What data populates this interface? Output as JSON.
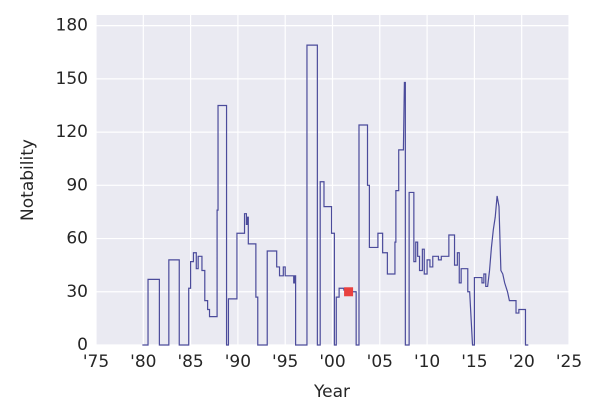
{
  "chart_data": {
    "type": "line",
    "xlabel": "Year",
    "ylabel": "Notability",
    "xlim": [
      1975,
      2025
    ],
    "xticks": [
      {
        "value": 1975,
        "label": "'75"
      },
      {
        "value": 1980,
        "label": "'80"
      },
      {
        "value": 1985,
        "label": "'85"
      },
      {
        "value": 1990,
        "label": "'90"
      },
      {
        "value": 1995,
        "label": "'95"
      },
      {
        "value": 2000,
        "label": "'00"
      },
      {
        "value": 2005,
        "label": "'05"
      },
      {
        "value": 2010,
        "label": "'10"
      },
      {
        "value": 2015,
        "label": "'15"
      },
      {
        "value": 2020,
        "label": "'20"
      },
      {
        "value": 2025,
        "label": "'25"
      }
    ],
    "ylim": [
      0,
      186
    ],
    "yticks": [
      0,
      30,
      60,
      90,
      120,
      150,
      180
    ],
    "grid": true,
    "series": [
      {
        "color": "#4b4b9b",
        "x": [
          1979.9,
          1980.5,
          1980.5,
          1981.7,
          1981.7,
          1982.7,
          1982.7,
          1983.8,
          1983.8,
          1984.8,
          1984.8,
          1985.0,
          1985.0,
          1985.3,
          1985.3,
          1985.6,
          1985.6,
          1985.8,
          1985.8,
          1986.2,
          1986.2,
          1986.5,
          1986.5,
          1986.8,
          1986.8,
          1987.0,
          1987.0,
          1987.8,
          1987.8,
          1987.9,
          1987.9,
          1988.8,
          1988.8,
          1989.0,
          1989.0,
          1989.9,
          1989.9,
          1990.7,
          1990.7,
          1990.9,
          1990.9,
          1991.0,
          1991.0,
          1991.1,
          1991.1,
          1991.9,
          1991.9,
          1992.1,
          1992.1,
          1993.1,
          1993.1,
          1994.1,
          1994.1,
          1994.4,
          1994.4,
          1994.8,
          1994.8,
          1995.0,
          1995.0,
          1995.9,
          1995.9,
          1996.0,
          1996.0,
          1996.1,
          1996.1,
          1997.3,
          1997.3,
          1998.4,
          1998.4,
          1998.7,
          1998.7,
          1999.1,
          1999.1,
          1999.9,
          1999.9,
          2000.2,
          2000.2,
          2000.4,
          2000.4,
          2000.7,
          2000.7,
          2001.2,
          2001.2,
          2001.4,
          2001.4,
          2002.5,
          2002.5,
          2002.8,
          2002.8,
          2003.7,
          2003.7,
          2003.9,
          2003.9,
          2004.8,
          2004.8,
          2005.3,
          2005.3,
          2005.8,
          2005.8,
          2006.6,
          2006.6,
          2006.7,
          2006.7,
          2007.0,
          2007.0,
          2007.5,
          2007.5,
          2007.6,
          2007.7,
          2007.7,
          2008.1,
          2008.1,
          2008.6,
          2008.6,
          2008.8,
          2008.8,
          2009.0,
          2009.0,
          2009.2,
          2009.2,
          2009.5,
          2009.5,
          2009.7,
          2009.7,
          2010.0,
          2010.0,
          2010.3,
          2010.3,
          2010.6,
          2010.6,
          2011.2,
          2011.2,
          2011.5,
          2011.5,
          2012.3,
          2012.3,
          2012.9,
          2012.9,
          2013.2,
          2013.2,
          2013.4,
          2013.4,
          2013.6,
          2013.6,
          2014.3,
          2014.3,
          2014.5,
          2014.8,
          2015.0,
          2015.0,
          2015.8,
          2015.8,
          2016.0,
          2016.0,
          2016.2,
          2016.2,
          2016.4,
          2016.6,
          2016.8,
          2017.0,
          2017.2,
          2017.4,
          2017.6,
          2017.8,
          2018.0,
          2018.2,
          2018.5,
          2018.7,
          2019.4,
          2019.4,
          2019.7,
          2019.7,
          2020.4,
          2020.4,
          2020.7
        ],
        "values": [
          0,
          0,
          37,
          37,
          0,
          0,
          48,
          48,
          0,
          0,
          32,
          32,
          47,
          47,
          52,
          52,
          43,
          43,
          50,
          50,
          42,
          42,
          25,
          25,
          20,
          20,
          16,
          16,
          76,
          76,
          135,
          135,
          0,
          0,
          26,
          26,
          63,
          63,
          74,
          74,
          68,
          68,
          72,
          72,
          57,
          57,
          27,
          27,
          0,
          0,
          53,
          53,
          44,
          44,
          39,
          39,
          44,
          44,
          39,
          39,
          35,
          35,
          39,
          39,
          0,
          0,
          169,
          169,
          0,
          0,
          92,
          92,
          78,
          78,
          63,
          63,
          0,
          0,
          27,
          27,
          32,
          32,
          31,
          31,
          30,
          30,
          0,
          0,
          124,
          124,
          90,
          90,
          55,
          55,
          63,
          63,
          52,
          52,
          40,
          40,
          58,
          58,
          87,
          87,
          110,
          110,
          112,
          148,
          148,
          0,
          0,
          86,
          86,
          47,
          47,
          58,
          58,
          50,
          50,
          42,
          42,
          54,
          54,
          40,
          40,
          48,
          48,
          44,
          44,
          50,
          50,
          48,
          48,
          50,
          50,
          62,
          62,
          45,
          45,
          52,
          52,
          35,
          35,
          43,
          43,
          30,
          30,
          0,
          0,
          38,
          38,
          35,
          35,
          40,
          40,
          33,
          33,
          42,
          55,
          65,
          72,
          84,
          78,
          42,
          40,
          35,
          30,
          25,
          25,
          18,
          18,
          20,
          20,
          0,
          0
        ]
      }
    ],
    "marker": {
      "x": 2001.7,
      "y": 30,
      "color": "#e8413f"
    }
  }
}
